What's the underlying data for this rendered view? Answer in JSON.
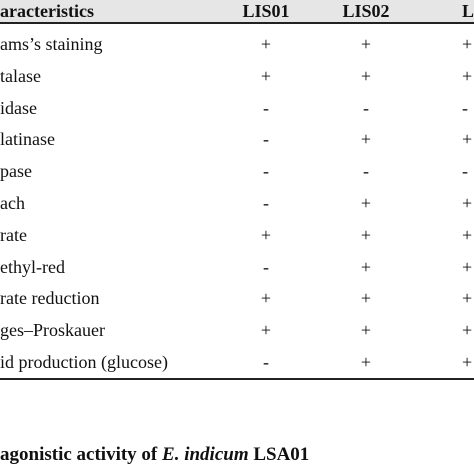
{
  "table": {
    "header": [
      "aracteristics",
      "LIS01",
      "LIS02",
      "L"
    ],
    "rows": [
      [
        "ams’s staining",
        "+",
        "+",
        "+"
      ],
      [
        "talase",
        "+",
        "+",
        "+"
      ],
      [
        "idase",
        "-",
        "-",
        "-"
      ],
      [
        "latinase",
        "-",
        "+",
        "+"
      ],
      [
        "pase",
        "-",
        "-",
        "-"
      ],
      [
        "ach",
        "-",
        "+",
        "+"
      ],
      [
        "rate",
        "+",
        "+",
        "+"
      ],
      [
        "ethyl-red",
        "-",
        "+",
        "+"
      ],
      [
        "rate reduction",
        "+",
        "+",
        "+"
      ],
      [
        "ges–Proskauer",
        "+",
        "+",
        "+"
      ],
      [
        "id production (glucose)",
        "-",
        "+",
        "+"
      ]
    ]
  },
  "caption": {
    "before": "agonistic activity of ",
    "species": "E. indicum",
    "after": " LSA01"
  }
}
